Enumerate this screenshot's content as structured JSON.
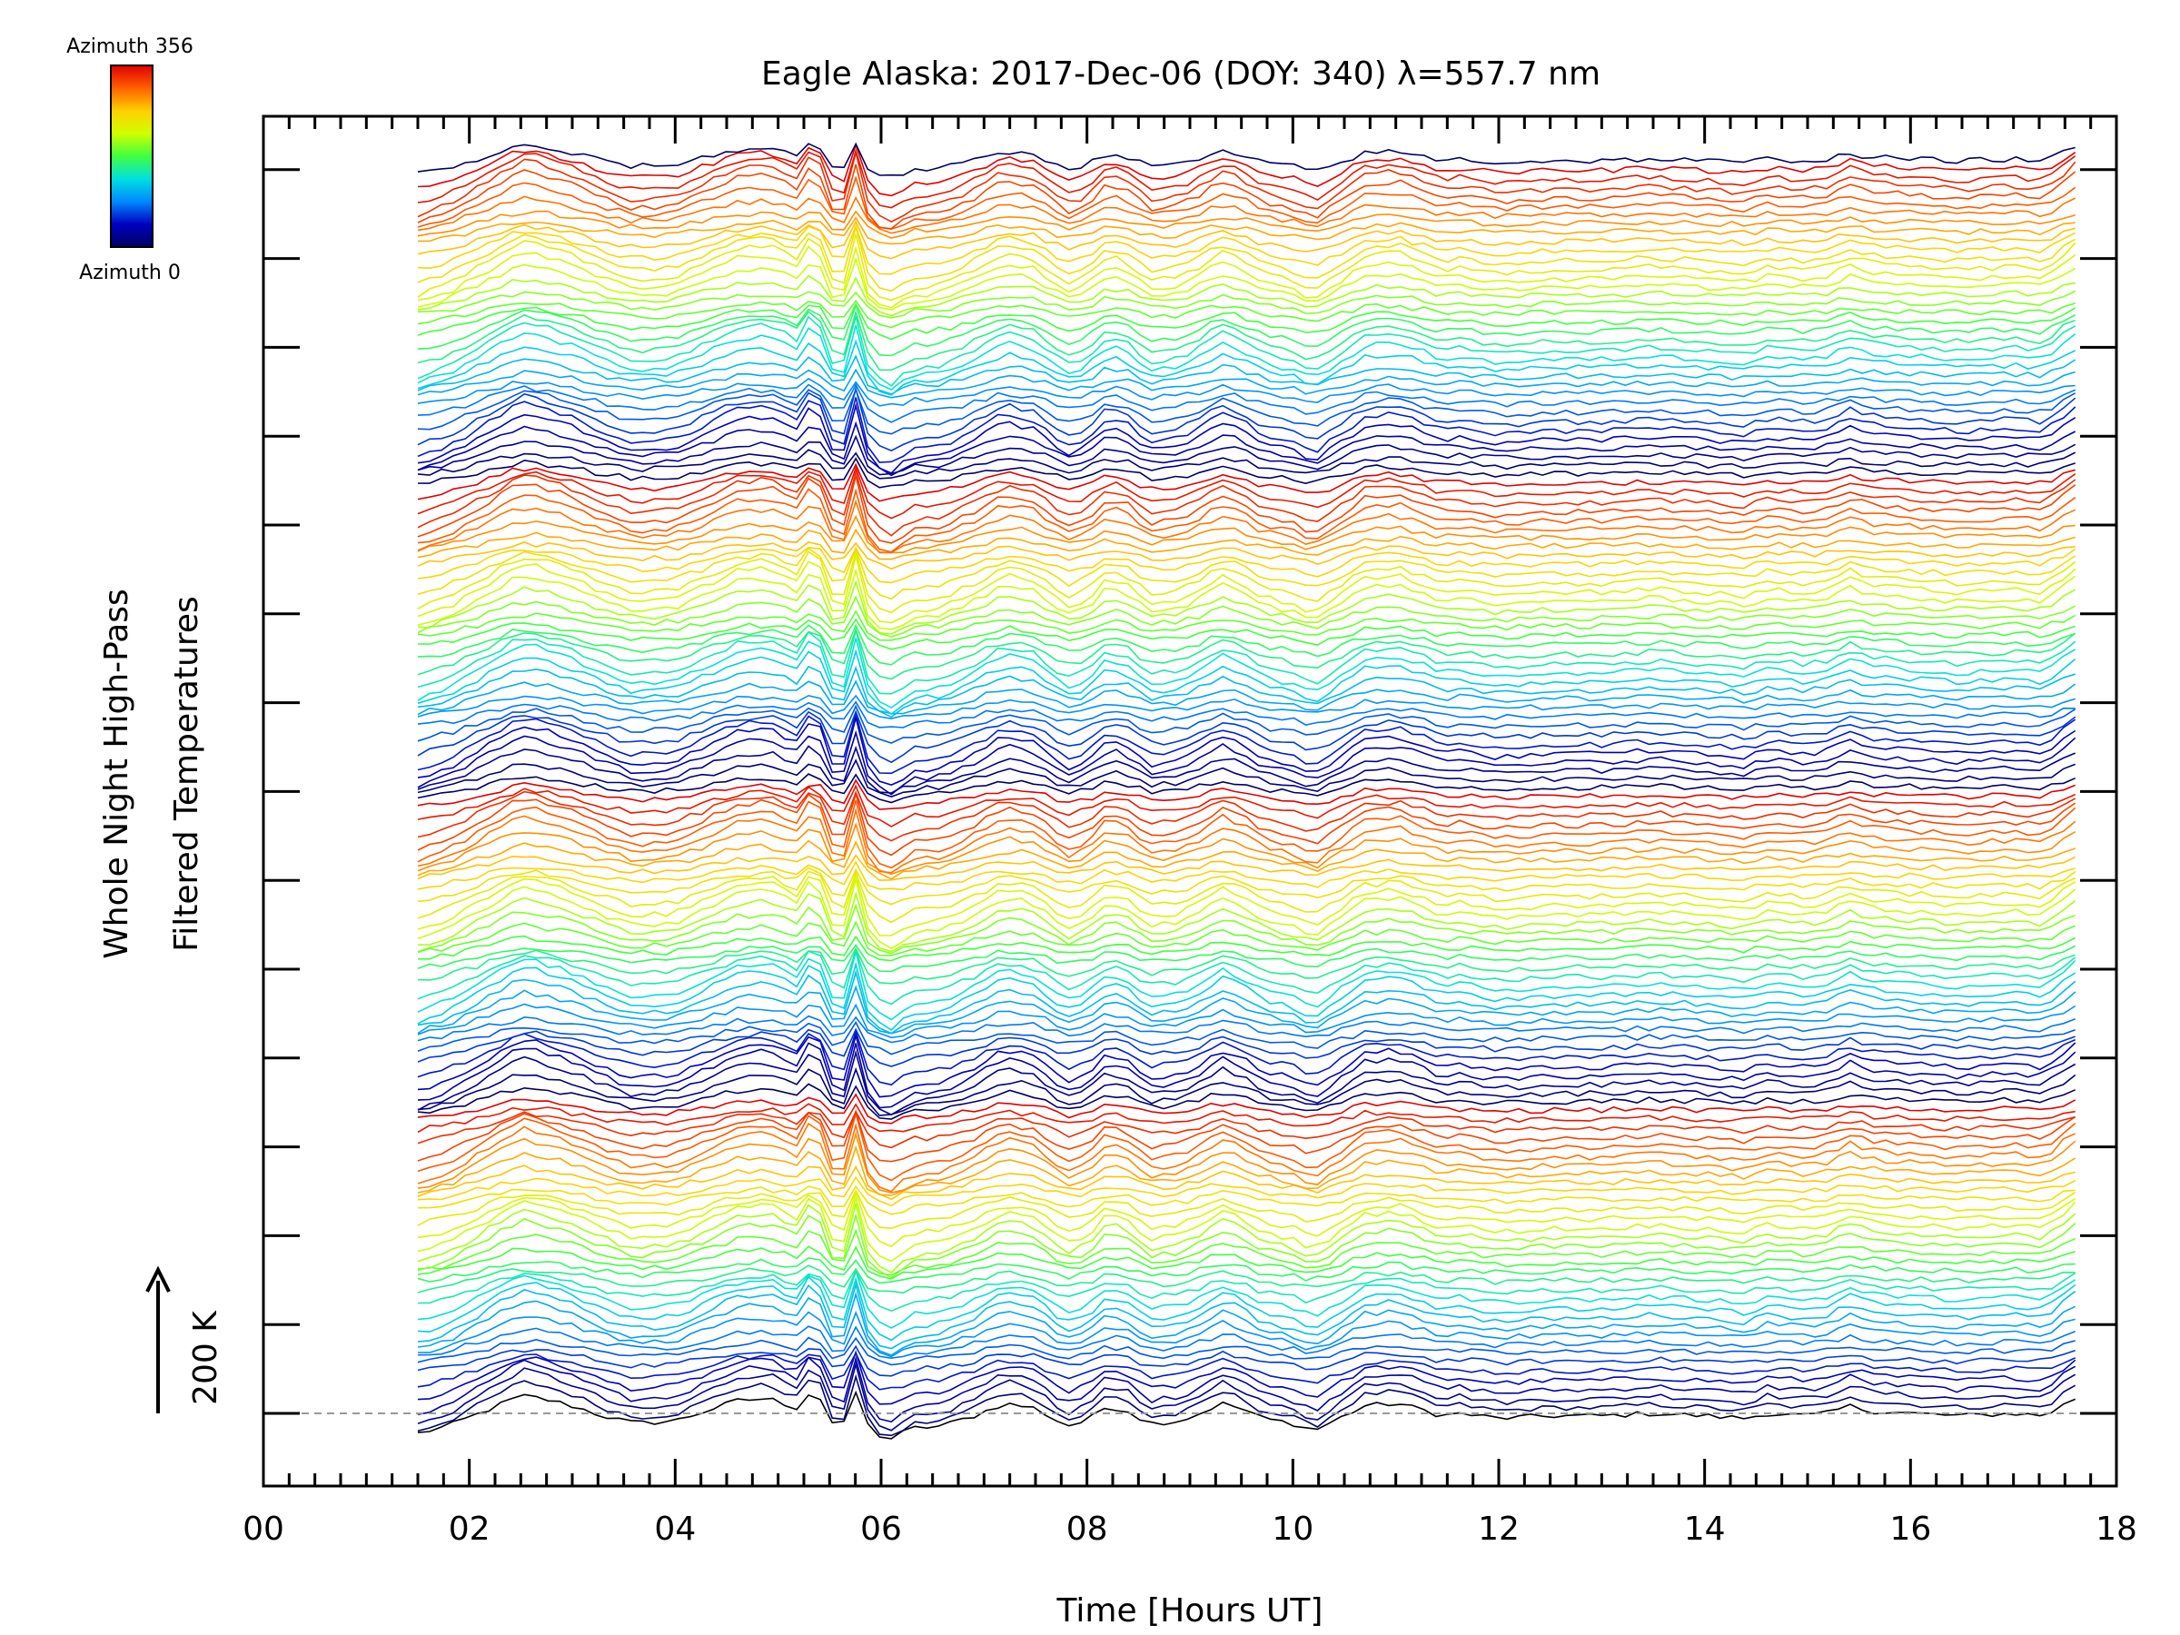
{
  "chart_data": {
    "type": "line",
    "title": "Eagle Alaska: 2017-Dec-06 (DOY: 340) λ=557.7 nm",
    "xlabel": "Time [Hours UT]",
    "ylabel_line1": "Whole Night High-Pass",
    "ylabel_line2": "Filtered Temperatures",
    "scale_label": "200 K",
    "xlim": [
      0,
      18
    ],
    "x_tick_labels": [
      "00",
      "02",
      "04",
      "06",
      "08",
      "10",
      "12",
      "14",
      "16",
      "18"
    ],
    "time_range": [
      1.5,
      17.6
    ],
    "series_count": 141,
    "colorbar": {
      "top_label": "Azimuth 356",
      "bottom_label": "Azimuth 0",
      "min": 0,
      "max": 356,
      "colors": [
        "#000060",
        "#0000c0",
        "#0088ff",
        "#00e0e0",
        "#40ff40",
        "#d0ff00",
        "#ffd000",
        "#ff6000",
        "#e00000"
      ]
    },
    "baseline_profile": {
      "x": [
        1.5,
        1.8,
        2.1,
        2.5,
        2.7,
        3.0,
        3.3,
        3.6,
        4.0,
        4.3,
        4.6,
        4.9,
        5.2,
        5.35,
        5.5,
        5.6,
        5.75,
        5.9,
        6.1,
        6.3,
        6.6,
        6.9,
        7.2,
        7.5,
        7.8,
        8.0,
        8.2,
        8.4,
        8.6,
        8.9,
        9.1,
        9.3,
        9.5,
        9.7,
        10.0,
        10.2,
        10.4,
        10.7,
        11.0,
        11.3,
        11.45,
        11.6,
        12.0,
        12.5,
        13.0,
        13.5,
        14.0,
        14.4,
        14.6,
        15.0,
        15.2,
        15.4,
        15.6,
        16.0,
        16.5,
        17.0,
        17.3,
        17.6
      ],
      "y": [
        -40,
        -25,
        0,
        35,
        30,
        15,
        -5,
        -20,
        -15,
        5,
        25,
        30,
        10,
        55,
        -10,
        -45,
        45,
        -40,
        -50,
        -30,
        -25,
        -5,
        20,
        10,
        -25,
        -15,
        15,
        5,
        -20,
        -15,
        0,
        20,
        10,
        -10,
        -20,
        -35,
        -15,
        15,
        20,
        5,
        -5,
        0,
        -10,
        -5,
        -5,
        0,
        -5,
        -10,
        0,
        -5,
        0,
        15,
        5,
        0,
        -5,
        0,
        -5,
        30
      ]
    }
  }
}
